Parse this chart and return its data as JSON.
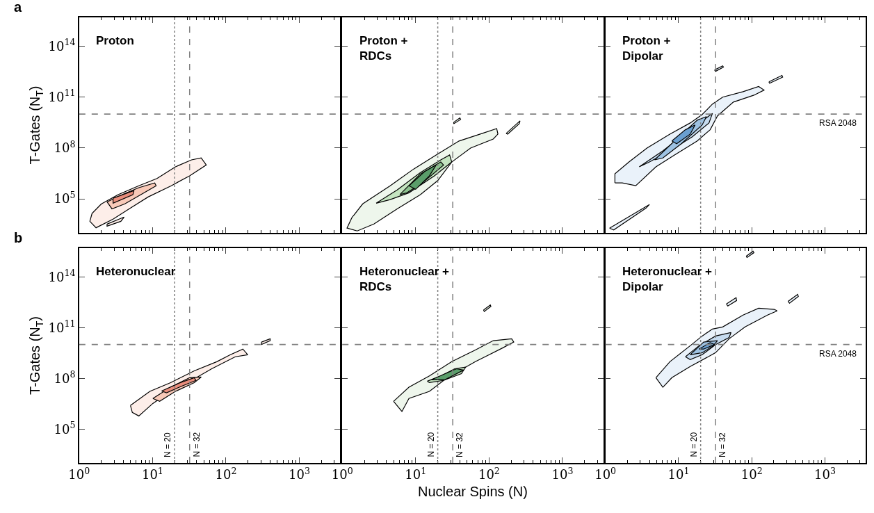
{
  "chart_data": [
    {
      "type": "area",
      "title": "Proton",
      "ylabel": "T-Gates (N$_{T}$)",
      "annotations": [
        "a"
      ],
      "log": "xy",
      "xlim": [
        1,
        3600
      ],
      "ylim": [
        1000,
        5000000000000000.0
      ],
      "tick_labels": "y",
      "grid": false,
      "xticks": [
        {
          "value": 1,
          "label": "10$^{0}$"
        },
        {
          "value": 10,
          "label": "10$^{1}$"
        },
        {
          "value": 100,
          "label": "10$^{2}$"
        },
        {
          "value": 1000,
          "label": "10$^{3}$"
        }
      ],
      "yticks": [
        {
          "value": 100000.0,
          "label": "10$^{5}$"
        },
        {
          "value": 100000000.0,
          "label": "10$^{8}$"
        },
        {
          "value": 100000000000.0,
          "label": "10$^{11}$"
        },
        {
          "value": 100000000000000.0,
          "label": "10$^{14}$"
        }
      ],
      "ref_lines": [
        {
          "axis": "x",
          "value": 20,
          "line_style": "dotted",
          "color": "#808080"
        },
        {
          "axis": "x",
          "value": 32,
          "line_style": "dashed",
          "color": "#808080"
        },
        {
          "axis": "y",
          "value": 10000000000.0,
          "line_style": "dashed",
          "color": "#808080"
        }
      ],
      "series": [
        {
          "color": "#fdeee9",
          "x": [
            1.5,
            2.0,
            3.4,
            6.5,
            11.5,
            20.5,
            34,
            46,
            54,
            32,
            18,
            8.7,
            4.8,
            2.9,
            1.7,
            1.4
          ],
          "values": [
            14000.0,
            50000.0,
            180000.0,
            600000.0,
            1600000.0,
            7800000.0,
            20000000.0,
            26000000.0,
            10000000.0,
            2300000.0,
            600000.0,
            130000.0,
            26000.0,
            6500.0,
            2000.0,
            4800.0
          ]
        },
        {
          "color": "#fdeee9",
          "x": [
            2.4,
            4.1,
            3.7,
            2.4
          ],
          "values": [
            3300.0,
            8500.0,
            4800.0,
            2500.0
          ]
        },
        {
          "color": "#f8c9b8",
          "x": [
            2.4,
            4.2,
            6.5,
            10.7,
            11.2,
            7.4,
            4.2,
            2.8
          ],
          "values": [
            67000.0,
            210000.0,
            460000.0,
            880000.0,
            600000.0,
            210000.0,
            51000.0,
            26000.0
          ]
        },
        {
          "color": "#e98d7c",
          "x": [
            2.9,
            5.6,
            5.4,
            2.9
          ],
          "values": [
            110000.0,
            310000.0,
            180000.0,
            56000.0
          ]
        }
      ]
    },
    {
      "type": "area",
      "title": "Proton +\nRDCs",
      "log": "xy",
      "xlim": [
        1,
        3600
      ],
      "ylim": [
        1000,
        5000000000000000.0
      ],
      "tick_labels": false,
      "grid": false,
      "xticks": [
        {
          "value": 1,
          "label": "10$^{0}$"
        },
        {
          "value": 10,
          "label": "10$^{1}$"
        },
        {
          "value": 100,
          "label": "10$^{2}$"
        },
        {
          "value": 1000,
          "label": "10$^{3}$"
        }
      ],
      "yticks": [
        {
          "value": 100000.0,
          "label": "10$^{5}$"
        },
        {
          "value": 100000000.0,
          "label": "10$^{8}$"
        },
        {
          "value": 100000000000.0,
          "label": "10$^{11}$"
        },
        {
          "value": 100000000000000.0,
          "label": "10$^{14}$"
        }
      ],
      "ref_lines": [
        {
          "axis": "x",
          "value": 20,
          "line_style": "dotted",
          "color": "#808080"
        },
        {
          "axis": "x",
          "value": 32,
          "line_style": "dashed",
          "color": "#808080"
        },
        {
          "axis": "y",
          "value": 10000000000.0,
          "line_style": "dashed",
          "color": "#808080"
        }
      ],
      "series": [
        {
          "color": "#eef6ec",
          "x": [
            1.35,
            1.9,
            4.5,
            9.4,
            19,
            39,
            81,
            127,
            132,
            114,
            56,
            31,
            20,
            11.6,
            5.6,
            2.7,
            1.6,
            1.16
          ],
          "values": [
            7800.0,
            51000.0,
            600000.0,
            5800000.0,
            39000000.0,
            260000000.0,
            730000000.0,
            1400000000.0,
            660000000.0,
            340000000.0,
            100000000.0,
            15000000.0,
            1200000.0,
            180000.0,
            26000.0,
            3300.0,
            1300.0,
            1900.0
          ]
        },
        {
          "color": "#eef6ec",
          "x": [
            171,
            264,
            258,
            179
          ],
          "values": [
            730000000.0,
            4000000000.0,
            2700000000.0,
            660000000.0
          ]
        },
        {
          "color": "#eef6ec",
          "x": [
            33,
            40,
            41,
            33
          ],
          "values": [
            3300000000.0,
            5900000000.0,
            4800000000.0,
            2700000000.0
          ]
        },
        {
          "color": "#c4e4c0",
          "x": [
            2.9,
            5.6,
            11.6,
            22,
            29,
            31,
            18,
            8.1,
            4.5
          ],
          "values": [
            56000.0,
            340000.0,
            3600000.0,
            20000000.0,
            39000000.0,
            15000000.0,
            2300000.0,
            230000.0,
            91000.0
          ]
        },
        {
          "color": "#8cc08e",
          "x": [
            6.1,
            11.6,
            22,
            24,
            12.4,
            7.6
          ],
          "values": [
            180000.0,
            3000000.0,
            15000000.0,
            10000000.0,
            880000.0,
            230000.0
          ]
        },
        {
          "color": "#5a9e6a",
          "x": [
            8.1,
            13.2,
            19,
            15.4,
            10
          ],
          "values": [
            600000.0,
            4000000.0,
            10000000.0,
            2300000.0,
            370000.0
          ]
        }
      ]
    },
    {
      "type": "area",
      "title": "Proton +\nDipolar",
      "log": "xy",
      "xlim": [
        1,
        3600
      ],
      "ylim": [
        1000,
        5000000000000000.0
      ],
      "tick_labels": false,
      "grid": false,
      "xticks": [
        {
          "value": 1,
          "label": "10$^{0}$"
        },
        {
          "value": 10,
          "label": "10$^{1}$"
        },
        {
          "value": 100,
          "label": "10$^{2}$"
        },
        {
          "value": 1000,
          "label": "10$^{3}$"
        }
      ],
      "yticks": [
        {
          "value": 100000.0,
          "label": "10$^{5}$"
        },
        {
          "value": 100000000.0,
          "label": "10$^{8}$"
        },
        {
          "value": 100000000000.0,
          "label": "10$^{11}$"
        },
        {
          "value": 100000000000000.0,
          "label": "10$^{14}$"
        }
      ],
      "ref_lines": [
        {
          "axis": "x",
          "value": 20,
          "line_style": "dotted",
          "color": "#808080"
        },
        {
          "axis": "x",
          "value": 32,
          "line_style": "dashed",
          "color": "#808080"
        },
        {
          "axis": "y",
          "value": 10000000000.0,
          "line_style": "dashed",
          "color": "#808080",
          "label": "RSA 2048"
        }
      ],
      "series": [
        {
          "color": "#eaf2fa",
          "x": [
            1.35,
            1.35,
            2.1,
            3.7,
            7.6,
            14.4,
            21,
            29,
            40,
            76,
            124,
            147,
            107,
            56,
            34,
            27,
            18,
            8.8,
            4.9,
            2.6,
            1.7
          ],
          "values": [
            880000.0,
            3000000.0,
            15000000.0,
            100000000.0,
            660000000.0,
            3000000000.0,
            9400000000.0,
            39000000000.0,
            100000000000.0,
            210000000000.0,
            420000000000.0,
            260000000000.0,
            130000000000.0,
            51000000000.0,
            7800000000.0,
            1200000000.0,
            260000000.0,
            39000000.0,
            7800000.0,
            600000.0,
            880000.0
          ]
        },
        {
          "color": "#eaf2fa",
          "x": [
            1.14,
            4.0,
            3.6,
            1.3
          ],
          "values": [
            1900.0,
            47000.0,
            29000.0,
            1500.0
          ]
        },
        {
          "color": "#eaf2fa",
          "x": [
            31,
            40,
            41,
            32
          ],
          "values": [
            4000000000000.0,
            7000000000000.0,
            5900000000000.0,
            3300000000000.0
          ]
        },
        {
          "color": "#eaf2fa",
          "x": [
            171,
            258,
            264,
            175
          ],
          "values": [
            790000000000.0,
            1900000000000.0,
            1500000000000.0,
            660000000000.0
          ]
        },
        {
          "color": "#c6dbef",
          "x": [
            2.9,
            6.1,
            14.4,
            26,
            29,
            26,
            15.4,
            7.6,
            4.0
          ],
          "values": [
            7800000.0,
            68000000.0,
            1200000000.0,
            7800000000.0,
            11000000000.0,
            3000000000.0,
            460000000.0,
            68000000.0,
            15000000.0
          ]
        },
        {
          "color": "#9ec2e2",
          "x": [
            4.7,
            8.8,
            18,
            24,
            21,
            10.9,
            6.1
          ],
          "values": [
            20000000.0,
            260000000.0,
            4400000000.0,
            7100000000.0,
            2300000000.0,
            180000000.0,
            26000000.0
          ]
        },
        {
          "color": "#6a9fd0",
          "x": [
            8.1,
            12.4,
            16.8,
            14.4,
            9.4
          ],
          "values": [
            260000000.0,
            1200000000.0,
            2300000000.0,
            660000000.0,
            180000000.0
          ]
        }
      ]
    },
    {
      "type": "area",
      "title": "Heteronuclear",
      "ylabel": "T-Gates (N$_{T}$)",
      "annotations": [
        "b"
      ],
      "log": "xy",
      "xlim": [
        1,
        3600
      ],
      "ylim": [
        1000,
        5000000000000000.0
      ],
      "grid": false,
      "xticks": [
        {
          "value": 1,
          "label": "10$^{0}$"
        },
        {
          "value": 10,
          "label": "10$^{1}$"
        },
        {
          "value": 100,
          "label": "10$^{2}$"
        },
        {
          "value": 1000,
          "label": "10$^{3}$"
        }
      ],
      "yticks": [
        {
          "value": 100000.0,
          "label": "10$^{5}$"
        },
        {
          "value": 100000000.0,
          "label": "10$^{8}$"
        },
        {
          "value": 100000000000.0,
          "label": "10$^{11}$"
        },
        {
          "value": 100000000000000.0,
          "label": "10$^{14}$"
        }
      ],
      "ref_lines": [
        {
          "axis": "x",
          "value": 20,
          "line_style": "dotted",
          "color": "#808080",
          "label": "N = 20"
        },
        {
          "axis": "x",
          "value": 32,
          "line_style": "dashed",
          "color": "#808080",
          "label": "N = 32"
        },
        {
          "axis": "y",
          "value": 10000000000.0,
          "line_style": "dashed",
          "color": "#808080"
        }
      ],
      "series": [
        {
          "color": "#fdeee9",
          "x": [
            5.0,
            9.2,
            17.6,
            37,
            75,
            115,
            170,
            198,
            134,
            64,
            34,
            17.6,
            10.1,
            6.5,
            5.3
          ],
          "values": [
            2500000.0,
            17000000.0,
            56000000.0,
            280000000.0,
            970000000.0,
            2500000000.0,
            5400000000.0,
            2500000000.0,
            1900000000.0,
            370000000.0,
            76000000.0,
            17000000.0,
            3300000.0,
            600000.0,
            970000.0
          ]
        },
        {
          "color": "#fdeee9",
          "x": [
            305,
            400,
            400,
            305
          ],
          "values": [
            14000000000.0,
            22000000000.0,
            17000000000.0,
            10000000000.0
          ]
        },
        {
          "color": "#f8c9b8",
          "x": [
            10.1,
            17.6,
            32,
            46,
            37,
            20.5,
            12.5
          ],
          "values": [
            6500000.0,
            30000000.0,
            110000000.0,
            120000000.0,
            56000000.0,
            17000000.0,
            4400000.0
          ]
        },
        {
          "color": "#e98d7c",
          "x": [
            13.3,
            24,
            37,
            39,
            25,
            15.5
          ],
          "values": [
            18000000.0,
            56000000.0,
            110000000.0,
            76000000.0,
            35000000.0,
            14000000.0
          ]
        }
      ]
    },
    {
      "type": "area",
      "title": "Heteronuclear +\nRDCs",
      "xlabel": "Nuclear Spins (N)",
      "log": "xy",
      "xlim": [
        1,
        3600
      ],
      "ylim": [
        1000,
        5000000000000000.0
      ],
      "tick_labels": "x",
      "grid": false,
      "xticks": [
        {
          "value": 1,
          "label": "10$^{0}$"
        },
        {
          "value": 10,
          "label": "10$^{1}$"
        },
        {
          "value": 100,
          "label": "10$^{2}$"
        },
        {
          "value": 1000,
          "label": "10$^{3}$"
        }
      ],
      "yticks": [
        {
          "value": 100000.0,
          "label": "10$^{5}$"
        },
        {
          "value": 100000000.0,
          "label": "10$^{8}$"
        },
        {
          "value": 100000000000.0,
          "label": "10$^{11}$"
        },
        {
          "value": 100000000000000.0,
          "label": "10$^{14}$"
        }
      ],
      "ref_lines": [
        {
          "axis": "x",
          "value": 20,
          "line_style": "dotted",
          "color": "#808080",
          "label": "N = 20"
        },
        {
          "axis": "x",
          "value": 32,
          "line_style": "dashed",
          "color": "#808080",
          "label": "N = 32"
        },
        {
          "axis": "y",
          "value": 10000000000.0,
          "line_style": "dashed",
          "color": "#808080"
        }
      ],
      "series": [
        {
          "color": "#eef6ec",
          "x": [
            5.0,
            8.1,
            15.4,
            31,
            65,
            114,
            203,
            217,
            154,
            65,
            27,
            15.4,
            8.1,
            6.5
          ],
          "values": [
            4400000.0,
            30000000.0,
            140000000.0,
            970000000.0,
            4800000000.0,
            17000000000.0,
            22000000000.0,
            14000000000.0,
            6400000000.0,
            970000000.0,
            110000000.0,
            17000000.0,
            6500000.0,
            1100000.0
          ]
        },
        {
          "color": "#eef6ec",
          "x": [
            84,
            104,
            106,
            86
          ],
          "values": [
            1100000000000.0,
            2200000000000.0,
            1800000000000.0,
            900000000000.0
          ]
        },
        {
          "color": "#c4e4c0",
          "x": [
            14.4,
            22,
            34,
            48,
            42,
            24,
            15.4
          ],
          "values": [
            68000000.0,
            140000000.0,
            370000000.0,
            460000000.0,
            190000000.0,
            76000000.0,
            56000000.0
          ]
        },
        {
          "color": "#5a9e6a",
          "x": [
            16.4,
            36,
            45,
            25
          ],
          "values": [
            83000000.0,
            370000000.0,
            310000000.0,
            83000000.0
          ]
        }
      ]
    },
    {
      "type": "area",
      "title": "Heteronuclear +\nDipolar",
      "log": "xy",
      "xlim": [
        1,
        3600
      ],
      "ylim": [
        1000,
        5000000000000000.0
      ],
      "tick_labels": "x",
      "grid": false,
      "xticks": [
        {
          "value": 1,
          "label": "10$^{0}$"
        },
        {
          "value": 10,
          "label": "10$^{1}$"
        },
        {
          "value": 100,
          "label": "10$^{2}$"
        },
        {
          "value": 1000,
          "label": "10$^{3}$"
        }
      ],
      "yticks": [
        {
          "value": 100000.0,
          "label": "10$^{5}$"
        },
        {
          "value": 100000000.0,
          "label": "10$^{8}$"
        },
        {
          "value": 100000000000.0,
          "label": "10$^{11}$"
        },
        {
          "value": 100000000000000.0,
          "label": "10$^{14}$"
        }
      ],
      "ref_lines": [
        {
          "axis": "x",
          "value": 20,
          "line_style": "dotted",
          "color": "#808080",
          "label": "N = 20"
        },
        {
          "axis": "x",
          "value": 32,
          "line_style": "dashed",
          "color": "#808080",
          "label": "N = 32"
        },
        {
          "axis": "y",
          "value": 10000000000.0,
          "line_style": "dashed",
          "color": "#808080",
          "label": "RSA 2048"
        }
      ],
      "series": [
        {
          "color": "#eaf2fa",
          "x": [
            4.9,
            7.6,
            14.4,
            21,
            29,
            40,
            76,
            124,
            203,
            222,
            164,
            81,
            49,
            32,
            14.4,
            8.1,
            6.1
          ],
          "values": [
            110000000.0,
            970000000.0,
            8500000000.0,
            32000000000.0,
            83000000000.0,
            110000000000.0,
            550000000000.0,
            1400000000000.0,
            1200000000000.0,
            980000000000.0,
            550000000000.0,
            110000000000.0,
            22000000000.0,
            3300000000.0,
            500000000.0,
            110000000.0,
            30000000.0
          ]
        },
        {
          "color": "#eaf2fa",
          "x": [
            45,
            61,
            62,
            47
          ],
          "values": [
            2500000000000.0,
            5900000000000.0,
            4000000000000.0,
            1900000000000.0
          ]
        },
        {
          "color": "#eaf2fa",
          "x": [
            313,
            423,
            432,
            327
          ],
          "values": [
            3600000000000.0,
            9300000000000.0,
            7000000000000.0,
            2800000000000.0
          ]
        },
        {
          "color": "#eaf2fa",
          "x": [
            84,
            104,
            107,
            86
          ],
          "values": [
            1700000000000000.0,
            3300000000000000.0,
            2700000000000000.0,
            1400000000000000.0
          ]
        },
        {
          "color": "#c6dbef",
          "x": [
            12.4,
            19,
            32,
            52,
            49,
            32,
            21,
            14.4
          ],
          "values": [
            1900000000.0,
            8500000000.0,
            32000000000.0,
            51000000000.0,
            26000000000.0,
            10000000000.0,
            2500000000.0,
            1300000000.0
          ]
        },
        {
          "color": "#9ec2e2",
          "x": [
            14.4,
            22,
            34,
            29,
            21
          ],
          "values": [
            2500000000.0,
            14000000000.0,
            17000000000.0,
            7800000000.0,
            3300000000.0
          ]
        },
        {
          "color": "#6a9fd0",
          "x": [
            19,
            27,
            31,
            22
          ],
          "values": [
            5400000000.0,
            13000000000.0,
            10000000000.0,
            5400000000.0
          ]
        }
      ]
    }
  ]
}
